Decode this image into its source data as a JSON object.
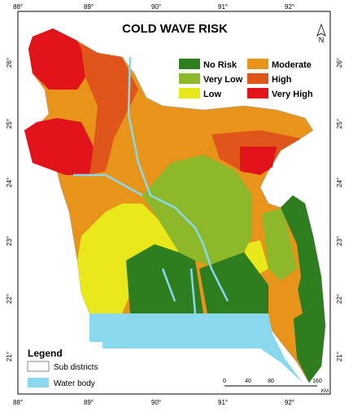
{
  "title": "COLD WAVE RISK",
  "risk_legend": [
    "No Risk",
    "Very Low",
    "Low",
    "Moderate",
    "High",
    "Very High"
  ],
  "coordinates": {
    "top": [
      "88°",
      "89°",
      "90°",
      "91°",
      "92°"
    ],
    "bottom": [
      "88°",
      "89°",
      "90°",
      "91°",
      "92°"
    ],
    "left": [
      "26°",
      "25°",
      "24°",
      "23°",
      "22°",
      "21°"
    ],
    "right": [
      "26°",
      "25°",
      "24°",
      "23°",
      "22°",
      "21°"
    ]
  },
  "north": "N",
  "legend": {
    "title": "Legend",
    "items": [
      "Sub districts",
      "Water body"
    ]
  },
  "scale": {
    "ticks": [
      "0",
      "40",
      "80",
      "160"
    ],
    "unit": "KM"
  }
}
